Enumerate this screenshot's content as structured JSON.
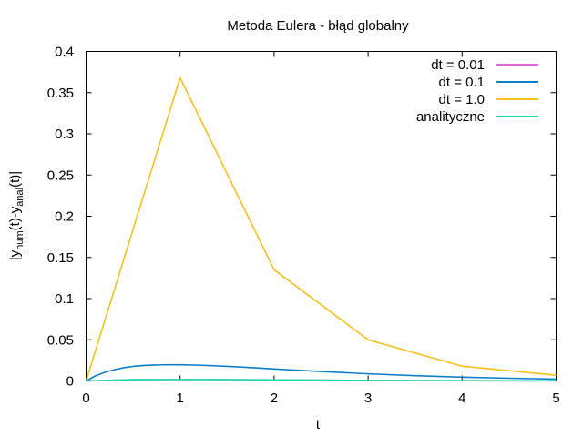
{
  "chart_data": {
    "type": "line",
    "title": "Metoda Eulera - błąd globalny",
    "xlabel": "t",
    "ylabel": {
      "prefix": "|y",
      "sub1": "num",
      "mid": "(t)-y",
      "sub2": "anal",
      "suffix": "(t)|"
    },
    "xlim": [
      0,
      5
    ],
    "ylim": [
      0,
      0.4
    ],
    "x_ticks": [
      0,
      1,
      2,
      3,
      4,
      5
    ],
    "y_ticks": [
      0,
      0.05,
      0.1,
      0.15,
      0.2,
      0.25,
      0.3,
      0.35,
      0.4
    ],
    "x_tick_labels": [
      "0",
      "1",
      "2",
      "3",
      "4",
      "5"
    ],
    "y_tick_labels": [
      "0",
      "0.05",
      "0.1",
      "0.15",
      "0.2",
      "0.25",
      "0.3",
      "0.35",
      "0.4"
    ],
    "grid": false,
    "legend_position": "top-right",
    "series": [
      {
        "name": "dt = 0.01",
        "color": "#e066e0",
        "x": [
          0,
          0.5,
          1,
          1.5,
          2,
          2.5,
          3,
          3.5,
          4,
          4.5,
          5
        ],
        "y": [
          0,
          0.0016,
          0.0018,
          0.0017,
          0.0013,
          0.001,
          0.0007,
          0.0005,
          0.0003,
          0.0002,
          0.0002
        ]
      },
      {
        "name": "dt = 0.1",
        "color": "#0f7fca",
        "x": [
          0,
          0.1,
          0.2,
          0.3,
          0.4,
          0.5,
          0.6,
          0.7,
          0.8,
          0.9,
          1.0,
          1.2,
          1.4,
          1.6,
          1.8,
          2.0,
          2.5,
          3.0,
          3.5,
          4.0,
          4.5,
          5.0
        ],
        "y": [
          0,
          0.0062,
          0.0105,
          0.0137,
          0.0161,
          0.0177,
          0.0187,
          0.0193,
          0.0196,
          0.0197,
          0.0197,
          0.0192,
          0.0183,
          0.0172,
          0.016,
          0.0146,
          0.0115,
          0.0087,
          0.0064,
          0.0046,
          0.0033,
          0.0023
        ]
      },
      {
        "name": "dt = 1.0",
        "color": "#f5c01b",
        "x": [
          0,
          1,
          2,
          3,
          4,
          5
        ],
        "y": [
          0,
          0.368,
          0.135,
          0.05,
          0.018,
          0.007
        ]
      },
      {
        "name": "analityczne",
        "color": "#14e0a0",
        "x": [
          0,
          0.5,
          1,
          1.5,
          2,
          2.5,
          3,
          3.5,
          4,
          4.5,
          5
        ],
        "y": [
          0,
          0.0016,
          0.0018,
          0.0017,
          0.0013,
          0.001,
          0.0007,
          0.0005,
          0.0003,
          0.0002,
          0.0002
        ]
      }
    ]
  }
}
